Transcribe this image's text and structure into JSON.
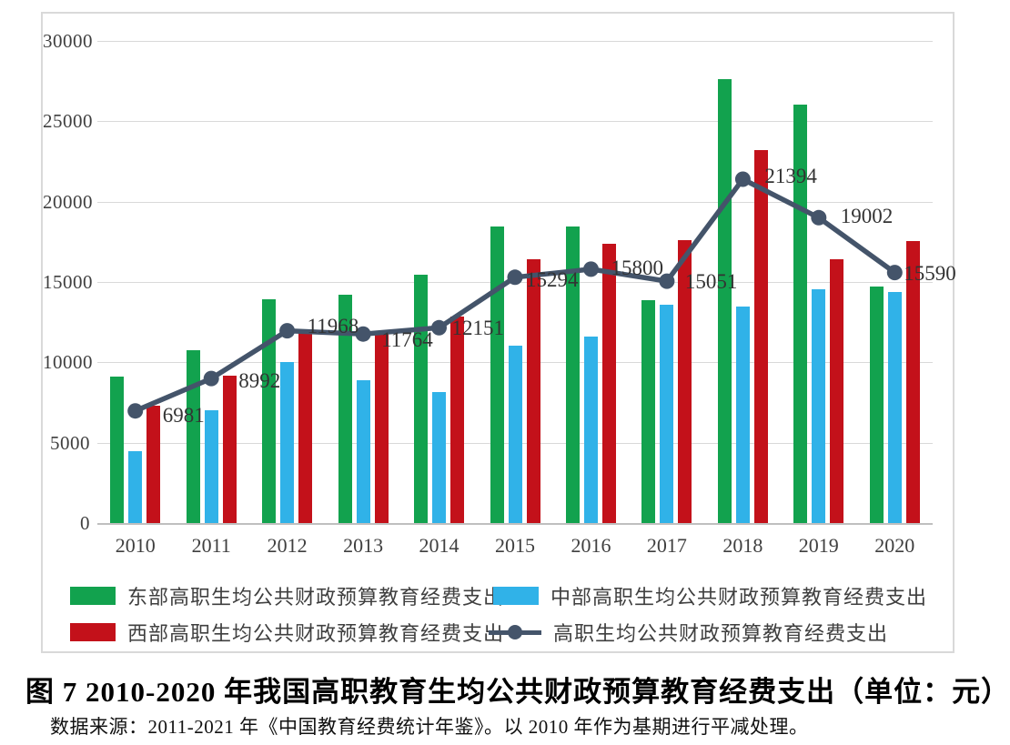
{
  "figure": {
    "caption": "图 7 2010-2020 年我国高职教育生均公共财政预算教育经费支出（单位：元）",
    "source_note": "数据来源：2011-2021 年《中国教育经费统计年鉴》。以 2010 年作为基期进行平减处理。"
  },
  "chart_data": {
    "type": "bar",
    "subtype": "grouped-bars-with-line-overlay",
    "title": "",
    "xlabel": "",
    "ylabel": "",
    "categories": [
      "2010",
      "2011",
      "2012",
      "2013",
      "2014",
      "2015",
      "2016",
      "2017",
      "2018",
      "2019",
      "2020"
    ],
    "series": [
      {
        "name": "东部高职生均公共财政预算教育经费支出",
        "type": "bar",
        "color": "#12a24e",
        "values": [
          9100,
          10750,
          13900,
          14200,
          15450,
          18450,
          18450,
          13850,
          27600,
          26050,
          14700
        ]
      },
      {
        "name": "中部高职生均公共财政预算教育经费支出",
        "type": "bar",
        "color": "#30b2e8",
        "values": [
          4500,
          7000,
          10050,
          8900,
          8150,
          11050,
          11600,
          13600,
          13450,
          14550,
          14400
        ]
      },
      {
        "name": "西部高职生均公共财政预算教育经费支出",
        "type": "bar",
        "color": "#c3111a",
        "values": [
          7300,
          9150,
          11900,
          11800,
          12850,
          16400,
          17400,
          17600,
          23200,
          16400,
          17550
        ]
      },
      {
        "name": "高职生均公共财政预算教育经费支出",
        "type": "line",
        "color": "#44546a",
        "marker": "circle",
        "values": [
          6981,
          8992,
          11968,
          11764,
          12151,
          15294,
          15800,
          15051,
          21394,
          19002,
          15590
        ],
        "point_labels": [
          "6981",
          "8992",
          "11968",
          "11764",
          "12151",
          "15294",
          "15800",
          "15051",
          "21394",
          "19002",
          "15590"
        ]
      }
    ],
    "ylim": [
      0,
      30000
    ],
    "y_ticks": [
      "0",
      "5000",
      "10000",
      "15000",
      "20000",
      "25000",
      "30000"
    ],
    "grid": true,
    "legend_position": "bottom"
  },
  "colors": {
    "grid": "#d9d9d9",
    "axis": "#bfbfbf",
    "tick_text": "#3f3f3f",
    "point_label_text": "#333333"
  }
}
